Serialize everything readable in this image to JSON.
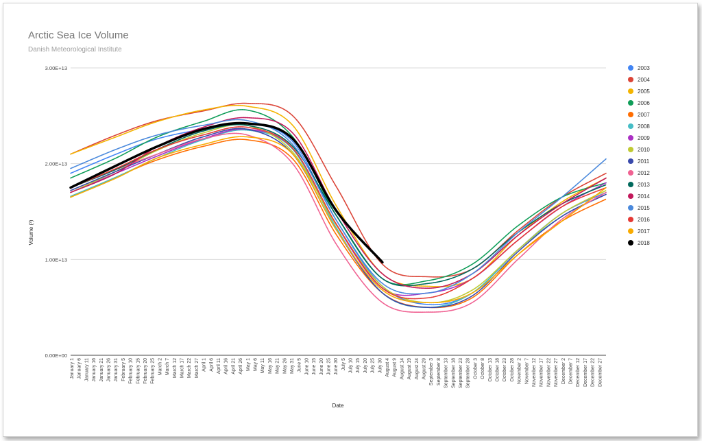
{
  "chart_data": {
    "type": "line",
    "title": "Arctic Sea Ice Volume",
    "subtitle": "Danish Meteorological Institute",
    "xlabel": "Date",
    "ylabel": "Volume (³)",
    "ylim": [
      0,
      30000000000000
    ],
    "yticks": [
      {
        "value": 0,
        "label": "0.00E+00"
      },
      {
        "value": 10000000000000,
        "label": "1.00E+13"
      },
      {
        "value": 20000000000000,
        "label": "2.00E+13"
      },
      {
        "value": 30000000000000,
        "label": "3.00E+13"
      }
    ],
    "grid": true,
    "legend_position": "right",
    "xticks": [
      "January 1",
      "January 6",
      "January 11",
      "January 16",
      "January 21",
      "January 26",
      "January 31",
      "February 5",
      "February 10",
      "February 15",
      "February 20",
      "February 25",
      "March 2",
      "March 7",
      "March 12",
      "March 17",
      "March 22",
      "March 27",
      "April 1",
      "April 6",
      "April 11",
      "April 16",
      "April 21",
      "April 26",
      "May 1",
      "May 6",
      "May 11",
      "May 16",
      "May 21",
      "May 26",
      "May 31",
      "June 5",
      "June 10",
      "June 15",
      "June 20",
      "June 25",
      "June 30",
      "July 5",
      "July 10",
      "July 15",
      "July 20",
      "July 25",
      "July 30",
      "August 4",
      "August 9",
      "August 14",
      "August 19",
      "August 24",
      "August 29",
      "September 3",
      "September 8",
      "September 13",
      "September 18",
      "September 23",
      "September 28",
      "October 3",
      "October 8",
      "October 13",
      "October 18",
      "October 23",
      "October 28",
      "November 2",
      "November 7",
      "November 12",
      "November 17",
      "November 22",
      "November 27",
      "December 2",
      "December 7",
      "December 12",
      "December 17",
      "December 22",
      "December 27"
    ],
    "x_days": [
      1,
      32,
      60,
      91,
      121,
      152,
      182,
      213,
      244,
      274,
      305,
      335,
      365
    ],
    "series": [
      {
        "name": "2003",
        "color": "#4285f4",
        "values": [
          19.0,
          21.0,
          22.6,
          23.6,
          24.2,
          22.3,
          14.0,
          7.2,
          5.3,
          6.5,
          11.0,
          14.8,
          17.0
        ]
      },
      {
        "name": "2004",
        "color": "#db4437",
        "values": [
          21.0,
          23.0,
          24.5,
          25.5,
          26.3,
          25.0,
          17.5,
          9.5,
          8.2,
          9.0,
          13.0,
          16.5,
          19.0
        ]
      },
      {
        "name": "2005",
        "color": "#f4b400",
        "values": [
          21.0,
          22.8,
          24.4,
          25.6,
          26.0,
          24.0,
          15.5,
          8.5,
          7.2,
          8.0,
          12.5,
          16.0,
          18.5
        ]
      },
      {
        "name": "2006",
        "color": "#0f9d58",
        "values": [
          18.5,
          20.6,
          22.8,
          24.4,
          25.6,
          22.8,
          14.5,
          8.0,
          7.8,
          9.5,
          13.5,
          16.5,
          18.0
        ]
      },
      {
        "name": "2007",
        "color": "#ff6d00",
        "values": [
          16.5,
          18.6,
          20.4,
          21.8,
          22.5,
          20.5,
          12.5,
          6.5,
          5.0,
          6.0,
          10.5,
          14.0,
          16.3
        ]
      },
      {
        "name": "2008",
        "color": "#46bdc6",
        "values": [
          16.6,
          18.6,
          20.6,
          22.5,
          23.5,
          21.5,
          13.2,
          6.5,
          5.0,
          6.5,
          11.0,
          14.5,
          16.8
        ]
      },
      {
        "name": "2009",
        "color": "#ab30c4",
        "values": [
          17.0,
          19.0,
          20.8,
          22.6,
          23.6,
          21.6,
          13.5,
          7.0,
          6.5,
          8.0,
          12.0,
          15.5,
          18.0
        ]
      },
      {
        "name": "2010",
        "color": "#c0ca33",
        "values": [
          17.0,
          19.2,
          21.4,
          23.2,
          24.0,
          21.2,
          13.5,
          7.2,
          5.5,
          6.8,
          11.0,
          14.8,
          17.2
        ]
      },
      {
        "name": "2011",
        "color": "#3949ab",
        "values": [
          17.2,
          19.2,
          21.0,
          22.8,
          23.6,
          21.0,
          13.0,
          6.5,
          5.0,
          6.2,
          10.8,
          14.5,
          16.8
        ]
      },
      {
        "name": "2012",
        "color": "#f06292",
        "values": [
          17.5,
          19.4,
          21.0,
          22.6,
          23.0,
          20.0,
          11.5,
          5.5,
          4.5,
          5.5,
          10.0,
          14.2,
          17.0
        ]
      },
      {
        "name": "2013",
        "color": "#00695c",
        "values": [
          17.5,
          19.4,
          21.5,
          23.4,
          24.0,
          21.8,
          14.5,
          8.0,
          7.5,
          9.0,
          12.8,
          15.8,
          17.8
        ]
      },
      {
        "name": "2014",
        "color": "#c2185b",
        "values": [
          17.0,
          19.0,
          21.8,
          23.8,
          24.8,
          23.2,
          15.0,
          8.5,
          7.0,
          8.5,
          12.5,
          15.8,
          18.5
        ]
      },
      {
        "name": "2015",
        "color": "#4a89dc",
        "values": [
          19.5,
          21.5,
          23.0,
          24.0,
          24.5,
          22.0,
          14.0,
          7.5,
          6.5,
          8.5,
          12.8,
          16.5,
          20.5
        ]
      },
      {
        "name": "2016",
        "color": "#e53935",
        "values": [
          17.5,
          19.5,
          21.5,
          23.0,
          23.8,
          21.6,
          13.6,
          7.0,
          6.0,
          8.0,
          12.0,
          15.5,
          17.5
        ]
      },
      {
        "name": "2017",
        "color": "#f9ab00",
        "values": [
          16.5,
          18.5,
          20.6,
          22.0,
          22.8,
          21.0,
          13.0,
          6.8,
          5.5,
          6.5,
          10.5,
          14.0,
          17.5
        ]
      },
      {
        "name": "2018",
        "color": "#000000",
        "values": [
          17.5,
          19.8,
          21.8,
          23.6,
          24.2,
          22.6,
          15.0,
          9.7,
          null,
          null,
          null,
          null,
          null
        ]
      }
    ]
  }
}
